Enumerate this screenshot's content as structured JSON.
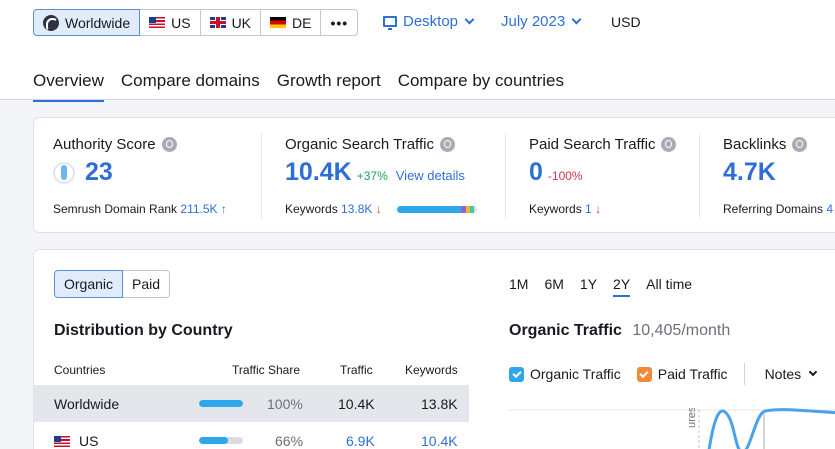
{
  "region_selector": {
    "items": [
      {
        "label": "Worldwide",
        "icon": "globe-icon",
        "active": true
      },
      {
        "label": "US",
        "icon": "us-flag-icon"
      },
      {
        "label": "UK",
        "icon": "uk-flag-icon"
      },
      {
        "label": "DE",
        "icon": "de-flag-icon"
      }
    ],
    "more_label": "•••"
  },
  "device": {
    "label": "Desktop"
  },
  "date": {
    "label": "July 2023"
  },
  "currency": "USD",
  "tabs": [
    "Overview",
    "Compare domains",
    "Growth report",
    "Compare by countries"
  ],
  "metrics": {
    "authority": {
      "label": "Authority Score",
      "value": "23",
      "sub_label": "Semrush Domain Rank",
      "sub_value": "211.5K",
      "sub_arrow": "↑"
    },
    "organic": {
      "label": "Organic Search Traffic",
      "value": "10.4K",
      "delta": "+37%",
      "link": "View details",
      "sub_label": "Keywords",
      "sub_value": "13.8K",
      "sub_arrow": "↓"
    },
    "paid": {
      "label": "Paid Search Traffic",
      "value": "0",
      "delta": "-100%",
      "sub_label": "Keywords",
      "sub_value": "1",
      "sub_arrow": "↓"
    },
    "backlinks": {
      "label": "Backlinks",
      "value": "4.7K",
      "sub_label": "Referring Domains",
      "sub_value": "4"
    }
  },
  "traffic_toggle": [
    "Organic",
    "Paid"
  ],
  "periods": [
    "1M",
    "6M",
    "1Y",
    "2Y",
    "All time"
  ],
  "distribution": {
    "title": "Distribution by Country",
    "columns": {
      "countries": "Countries",
      "share": "Traffic Share",
      "traffic": "Traffic",
      "keywords": "Keywords"
    },
    "rows": [
      {
        "country": "Worldwide",
        "share": "100%",
        "share_fraction": 1.0,
        "traffic": "10.4K",
        "keywords": "13.8K"
      },
      {
        "country": "US",
        "share": "66%",
        "share_fraction": 0.66,
        "traffic": "6.9K",
        "keywords": "10.4K"
      }
    ]
  },
  "organic_chart": {
    "title": "Organic Traffic",
    "subtitle": "10,405/month",
    "legend": [
      {
        "label": "Organic Traffic",
        "color": "#2ea7ea"
      },
      {
        "label": "Paid Traffic",
        "color": "#f08b3a"
      }
    ],
    "notes_label": "Notes",
    "axis_fragment": "ures"
  },
  "colors": {
    "accent": "#2e6fd6",
    "positive": "#19a35d",
    "negative": "#d0364a"
  }
}
